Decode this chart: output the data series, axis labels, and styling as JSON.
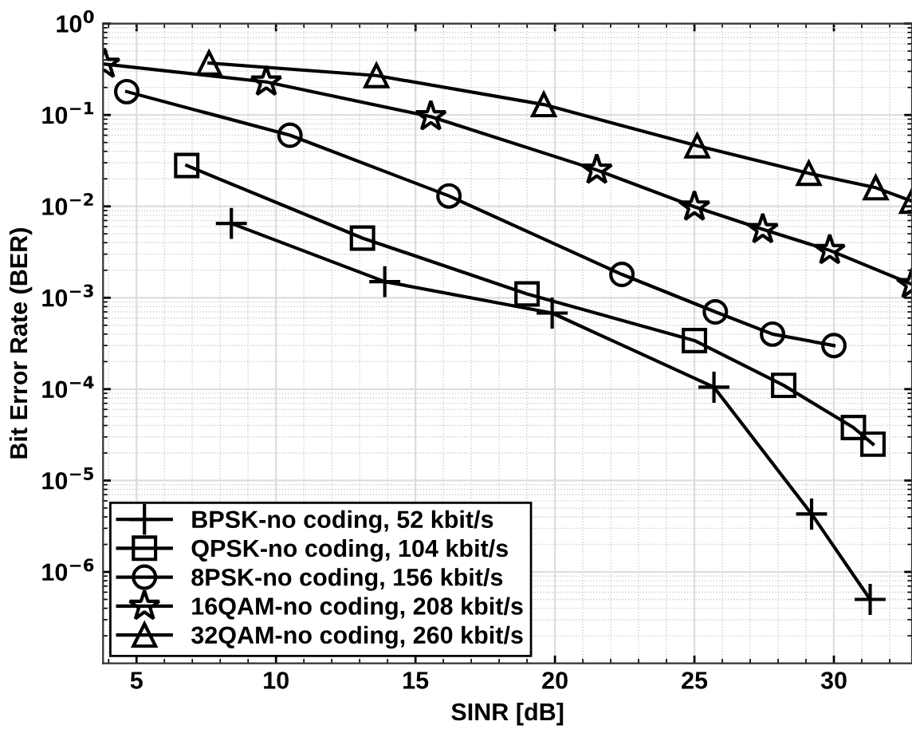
{
  "chart_data": {
    "type": "line",
    "xlabel": "SINR [dB]",
    "ylabel": "Bit Error Rate (BER)",
    "log": "y",
    "grid": true,
    "legend": "bottom left",
    "line_style": "solid",
    "xlim": [
      3.8,
      32.8
    ],
    "xticks": [
      5,
      10,
      15,
      20,
      25,
      30
    ],
    "ylim": [
      1e-07,
      1
    ],
    "yticks": [
      {
        "value": 1,
        "label": "10$^{0}$"
      },
      {
        "value": 0.1,
        "label": "10$^{−1}$"
      },
      {
        "value": 0.01,
        "label": "10$^{−2}$"
      },
      {
        "value": 0.001,
        "label": "10$^{−3}$"
      },
      {
        "value": 0.0001,
        "label": "10$^{−4}$"
      },
      {
        "value": 1e-05,
        "label": "10$^{−5}$"
      },
      {
        "value": 1e-06,
        "label": "10$^{−6}$"
      }
    ],
    "series": [
      {
        "name": "BPSK-no coding, 52 kbit/s",
        "color": "#000000",
        "marker": "cross",
        "x": [
          8.4,
          13.9,
          19.9,
          25.7,
          29.2,
          31.3
        ],
        "values": [
          0.0065,
          0.0015,
          0.00068,
          0.000105,
          4.3e-06,
          5e-07
        ]
      },
      {
        "name": "QPSK-no coding, 104 kbit/s",
        "color": "#000000",
        "marker": "square",
        "x": [
          6.8,
          13.1,
          19.0,
          25.0,
          28.2,
          30.7,
          31.4
        ],
        "values": [
          0.028,
          0.0045,
          0.0011,
          0.00034,
          0.00011,
          3.8e-05,
          2.5e-05
        ]
      },
      {
        "name": "8PSK-no coding, 156 kbit/s",
        "color": "#000000",
        "marker": "circle",
        "x": [
          4.65,
          10.5,
          16.2,
          22.4,
          25.75,
          27.8,
          30.0
        ],
        "values": [
          0.18,
          0.06,
          0.013,
          0.0018,
          0.0007,
          0.0004,
          0.0003
        ]
      },
      {
        "name": "16QAM-no coding, 208 kbit/s",
        "color": "#000000",
        "marker": "star",
        "x": [
          3.85,
          9.65,
          15.55,
          21.5,
          25.0,
          27.45,
          29.85,
          32.8
        ],
        "values": [
          0.36,
          0.23,
          0.096,
          0.025,
          0.0099,
          0.0056,
          0.0033,
          0.0014
        ]
      },
      {
        "name": "32QAM-no coding, 260 kbit/s",
        "color": "#000000",
        "marker": "triangle",
        "x": [
          7.6,
          13.6,
          19.6,
          25.1,
          29.1,
          31.5,
          32.8
        ],
        "values": [
          0.37,
          0.27,
          0.13,
          0.046,
          0.023,
          0.016,
          0.0114
        ]
      }
    ]
  }
}
